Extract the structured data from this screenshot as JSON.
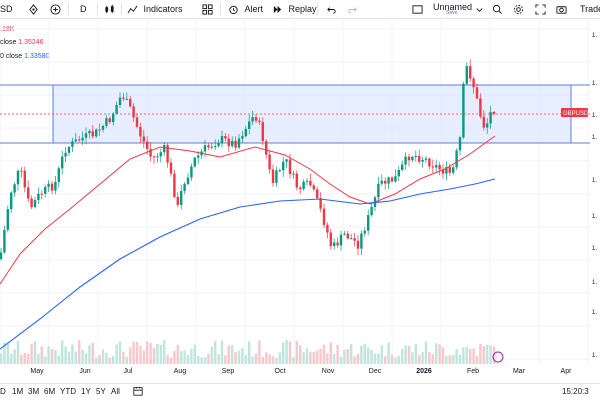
{
  "toolbar": {
    "symbol": "SD",
    "interval": "D",
    "indicators_label": "Indicators",
    "alert_label": "Alert",
    "replay_label": "Replay",
    "layout_name": "Unnamed",
    "layout_status": "Save",
    "trade_label": "Trade"
  },
  "legend": {
    "line1": ".18K",
    "line2_label": "close",
    "line2_value": "1.35246",
    "line3_label": "0 close",
    "line3_value": "1.33580"
  },
  "chart_data": {
    "type": "candlestick",
    "x_tick_labels": [
      "May",
      "Jun",
      "Jul",
      "Aug",
      "Sep",
      "Oct",
      "Nov",
      "Dec",
      "2026",
      "Feb",
      "Mar",
      "Apr"
    ],
    "price_axis_labels": [
      "1.",
      "1.",
      "1.",
      "1.",
      "1.",
      "1.",
      "1.",
      "1.",
      "1.",
      "1."
    ],
    "symbol_tag": "GBPUSD",
    "series": [
      {
        "name": "GBPUSD",
        "kind": "candles"
      },
      {
        "name": "",
        "kind": "moving-average-red",
        "color": "#f23645"
      },
      {
        "name": "",
        "kind": "moving-average-blue",
        "color": "#2962ff"
      }
    ],
    "zone": "range box",
    "grid": true
  },
  "bottombar": {
    "timeframes": [
      "D",
      "1M",
      "3M",
      "6M",
      "YTD",
      "1Y",
      "5Y",
      "All"
    ],
    "clock": "15:20:3"
  },
  "colors": {
    "up": "#089981",
    "down": "#f23645",
    "ma_red": "#f23645",
    "ma_blue": "#2962ff",
    "zone_fill": "#dbe7ff",
    "zone_border": "#5b7fd6"
  }
}
